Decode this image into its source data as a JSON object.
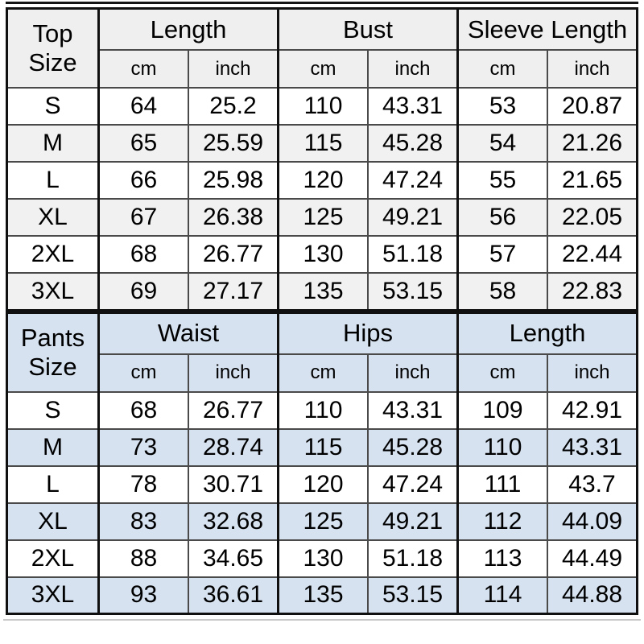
{
  "colors": {
    "top_header_bg": "#efefef",
    "top_alt_row_bg": "#f1f1f1",
    "pants_header_bg": "#d6e2f0",
    "pants_alt_row_bg": "#d6e2f0",
    "row_bg": "#ffffff",
    "inner_border": "#4a4a4a",
    "outer_border": "#101010",
    "text": "#000000"
  },
  "chart_data": [
    {
      "type": "table",
      "size_header": "Top Size",
      "groups": [
        "Length",
        "Bust",
        "Sleeve Length"
      ],
      "unit_labels": [
        "cm",
        "inch"
      ],
      "rows": [
        {
          "size": "S",
          "values": [
            "64",
            "25.2",
            "110",
            "43.31",
            "53",
            "20.87"
          ]
        },
        {
          "size": "M",
          "values": [
            "65",
            "25.59",
            "115",
            "45.28",
            "54",
            "21.26"
          ]
        },
        {
          "size": "L",
          "values": [
            "66",
            "25.98",
            "120",
            "47.24",
            "55",
            "21.65"
          ]
        },
        {
          "size": "XL",
          "values": [
            "67",
            "26.38",
            "125",
            "49.21",
            "56",
            "22.05"
          ]
        },
        {
          "size": "2XL",
          "values": [
            "68",
            "26.77",
            "130",
            "51.18",
            "57",
            "22.44"
          ]
        },
        {
          "size": "3XL",
          "values": [
            "69",
            "27.17",
            "135",
            "53.15",
            "58",
            "22.83"
          ]
        }
      ]
    },
    {
      "type": "table",
      "size_header": "Pants Size",
      "groups": [
        "Waist",
        "Hips",
        "Length"
      ],
      "unit_labels": [
        "cm",
        "inch"
      ],
      "rows": [
        {
          "size": "S",
          "values": [
            "68",
            "26.77",
            "110",
            "43.31",
            "109",
            "42.91"
          ]
        },
        {
          "size": "M",
          "values": [
            "73",
            "28.74",
            "115",
            "45.28",
            "110",
            "43.31"
          ]
        },
        {
          "size": "L",
          "values": [
            "78",
            "30.71",
            "120",
            "47.24",
            "111",
            "43.7"
          ]
        },
        {
          "size": "XL",
          "values": [
            "83",
            "32.68",
            "125",
            "49.21",
            "112",
            "44.09"
          ]
        },
        {
          "size": "2XL",
          "values": [
            "88",
            "34.65",
            "130",
            "51.18",
            "113",
            "44.49"
          ]
        },
        {
          "size": "3XL",
          "values": [
            "93",
            "36.61",
            "135",
            "53.15",
            "114",
            "44.88"
          ]
        }
      ]
    }
  ]
}
